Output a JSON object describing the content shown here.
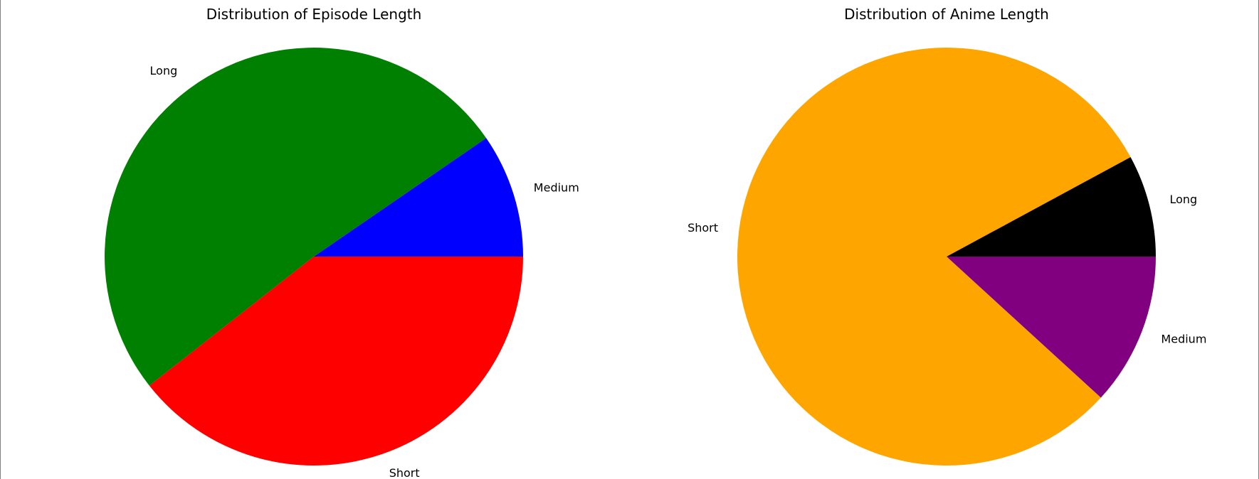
{
  "chart_data": [
    {
      "type": "pie",
      "title": "Distribution of Episode Length",
      "slices": [
        {
          "label": "Medium",
          "value": 9.6,
          "color": "#0000ff"
        },
        {
          "label": "Long",
          "value": 51.0,
          "color": "#008000"
        },
        {
          "label": "Short",
          "value": 39.4,
          "color": "#ff0000"
        }
      ],
      "start_angle": 0,
      "direction": "counterclockwise"
    },
    {
      "type": "pie",
      "title": "Distribution of Anime Length",
      "slices": [
        {
          "label": "Long",
          "value": 7.9,
          "color": "#000000"
        },
        {
          "label": "Short",
          "value": 80.3,
          "color": "#ffa500"
        },
        {
          "label": "Medium",
          "value": 11.8,
          "color": "#800080"
        }
      ],
      "start_angle": 0,
      "direction": "counterclockwise"
    }
  ]
}
